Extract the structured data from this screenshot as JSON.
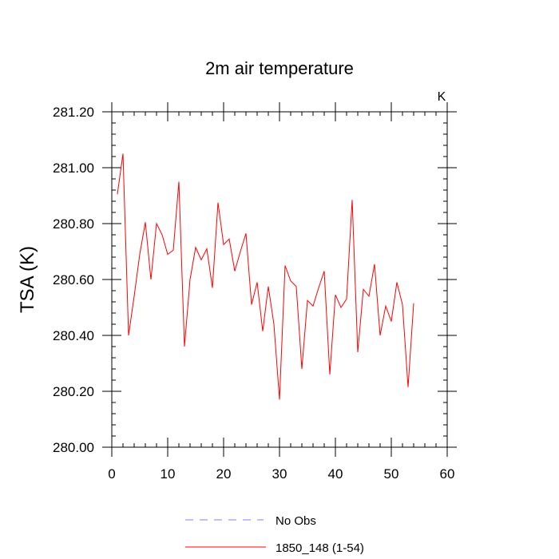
{
  "chart_data": {
    "type": "line",
    "title": "2m air temperature",
    "ylabel": "TSA  (K)",
    "units_label": "K",
    "xlim": [
      0,
      60
    ],
    "ylim": [
      280.0,
      281.2
    ],
    "xticks": [
      "0",
      "10",
      "20",
      "30",
      "40",
      "50",
      "60"
    ],
    "yticks": [
      "280.00",
      "280.20",
      "280.40",
      "280.60",
      "280.80",
      "281.00",
      "281.20"
    ],
    "grid": false,
    "legend_position": "bottom",
    "legend": [
      {
        "name": "No Obs",
        "style": "dashed",
        "color": "#8080ff"
      },
      {
        "name": "1850_148 (1-54)",
        "style": "solid",
        "color": "#ff0000"
      }
    ],
    "series": [
      {
        "name": "1850_148 (1-54)",
        "color": "#ff0000",
        "x": [
          1,
          2,
          3,
          4,
          5,
          6,
          7,
          8,
          9,
          10,
          11,
          12,
          13,
          14,
          15,
          16,
          17,
          18,
          19,
          20,
          21,
          22,
          23,
          24,
          25,
          26,
          27,
          28,
          29,
          30,
          31,
          32,
          33,
          34,
          35,
          36,
          37,
          38,
          39,
          40,
          41,
          42,
          43,
          44,
          45,
          46,
          47,
          48,
          49,
          50,
          51,
          52,
          53,
          54
        ],
        "values": [
          280.905,
          281.05,
          280.4,
          280.54,
          280.69,
          280.805,
          280.6,
          280.8,
          280.76,
          280.69,
          280.705,
          280.95,
          280.36,
          280.6,
          280.715,
          280.67,
          280.71,
          280.57,
          280.875,
          280.725,
          280.745,
          280.63,
          280.7,
          280.765,
          280.51,
          280.59,
          280.415,
          280.575,
          280.44,
          280.17,
          280.65,
          280.595,
          280.575,
          280.28,
          280.525,
          280.505,
          280.57,
          280.63,
          280.26,
          280.545,
          280.5,
          280.53,
          280.885,
          280.34,
          280.565,
          280.54,
          280.655,
          280.4,
          280.505,
          280.45,
          280.59,
          280.51,
          280.215,
          280.515
        ]
      }
    ]
  }
}
